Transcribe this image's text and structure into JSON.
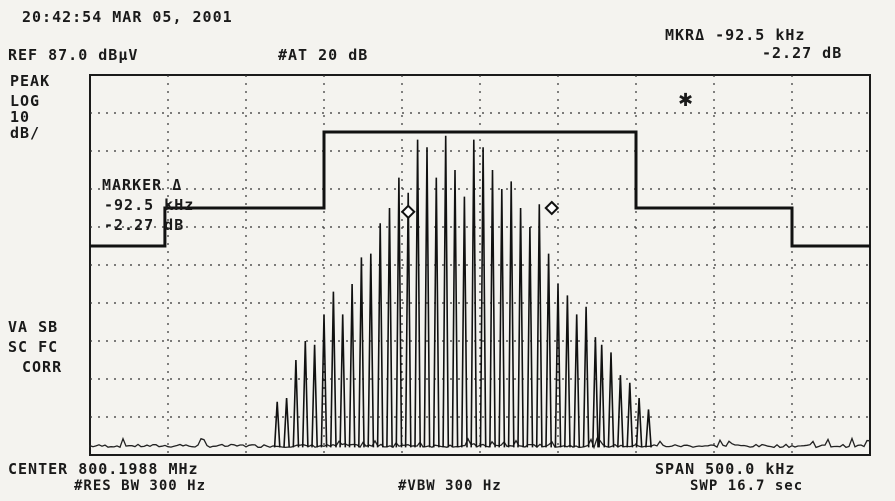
{
  "header": {
    "timestamp": "20:42:54 MAR 05, 2001",
    "ref_level": "REF 87.0 dBµV",
    "attenuation": "#AT 20 dB",
    "marker_readout_freq": "MKRΔ -92.5 kHz",
    "marker_readout_amp": "-2.27 dB"
  },
  "left_panel": {
    "detector": "PEAK",
    "scale_lines": [
      "LOG",
      "10",
      "dB/"
    ],
    "trace_mode": "VA SB",
    "corr_lines": [
      "SC FC",
      "CORR"
    ]
  },
  "marker_box": {
    "title": "MARKER Δ",
    "freq": "-92.5 kHz",
    "amp": "-2.27 dB"
  },
  "footer": {
    "center": "CENTER 800.1988 MHz",
    "span": "SPAN 500.0 kHz",
    "rbw": "#RES BW 300 Hz",
    "vbw": "#VBW 300 Hz",
    "sweep": "SWP 16.7 sec"
  },
  "chart_data": {
    "type": "line",
    "title": "",
    "xlabel": "",
    "ylabel": "",
    "x_unit": "kHz offset from center",
    "y_unit": "dBµV",
    "xlim": [
      -250,
      250
    ],
    "ylim": [
      -13,
      87
    ],
    "grid": true,
    "series": [
      {
        "role": "limit-mask",
        "x": [
          -250,
          -202,
          -202,
          -100,
          -100,
          100,
          100,
          200,
          200,
          250
        ],
        "y": [
          42,
          42,
          52,
          52,
          72,
          72,
          52,
          52,
          42,
          42
        ]
      },
      {
        "role": "trace",
        "peaks_x": [
          -130,
          -124,
          -118,
          -112,
          -106,
          -100,
          -94,
          -88,
          -82,
          -76,
          -70,
          -64,
          -58,
          -52,
          -46,
          -40,
          -34,
          -28,
          -22,
          -16,
          -10,
          -4,
          2,
          8,
          14,
          20,
          26,
          32,
          38,
          44,
          50,
          56,
          62,
          68,
          74,
          78,
          84,
          90,
          96,
          102,
          108
        ],
        "peaks_y": [
          1,
          2,
          12,
          17,
          16,
          24,
          30,
          24,
          32,
          39,
          40,
          48,
          52,
          60,
          56,
          70,
          68,
          60,
          71,
          62,
          55,
          70,
          68,
          62,
          57,
          59,
          52,
          47,
          53,
          40,
          32,
          29,
          24,
          26,
          18,
          16,
          14,
          8,
          6,
          2,
          -1
        ],
        "noise_floor": -11,
        "marker_points_x": [
          -46,
          46
        ],
        "marker_points_y": [
          51,
          52
        ]
      }
    ],
    "markers": [
      {
        "label": "Δ",
        "x": -46,
        "y": 51
      },
      {
        "label": "ref",
        "x": 46,
        "y": 52
      }
    ]
  }
}
